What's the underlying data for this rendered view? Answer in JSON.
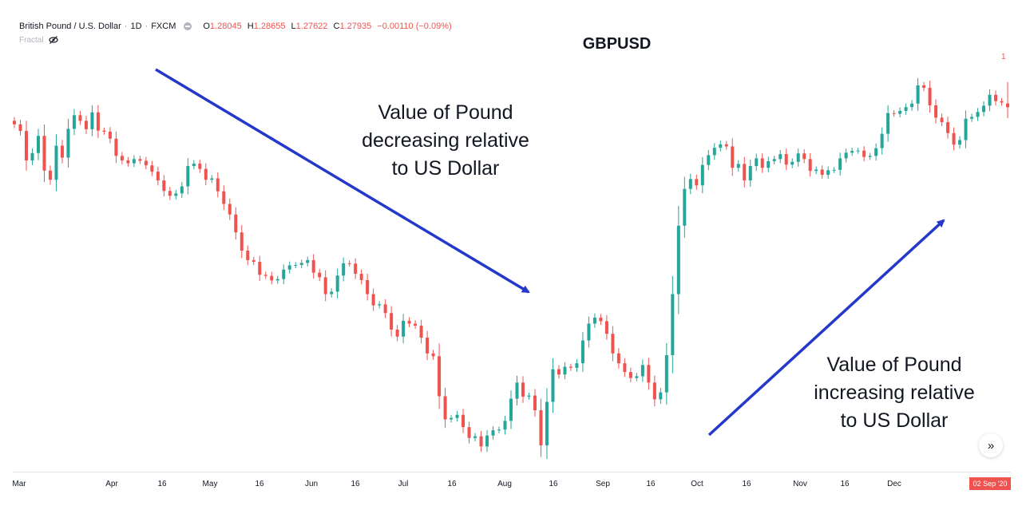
{
  "legend": {
    "symbol": "British Pound / U.S. Dollar",
    "interval": "1D",
    "exchange": "FXCM",
    "ohlc": {
      "o_label": "O",
      "o": "1.28045",
      "h_label": "H",
      "h": "1.28655",
      "l_label": "L",
      "l": "1.27622",
      "c_label": "C",
      "c": "1.27935",
      "change": "−0.00110 (−0.09%)"
    },
    "indicator": "Fractal"
  },
  "corner_label": "1",
  "date_badge": "02 Sep '20",
  "scroll_icon": "double-chevron-right-icon",
  "colors": {
    "up": "#26a69a",
    "down": "#ef5350",
    "arrow": "#2438c9",
    "grid": "#e0e3eb",
    "axis_text": "#131722"
  },
  "annotations": {
    "down": [
      "Value of Pound",
      "decreasing relative",
      "to US Dollar"
    ],
    "up": [
      "Value of Pound",
      "increasing relative",
      "to US Dollar"
    ]
  },
  "chart_data": {
    "type": "candlestick",
    "title": "GBPUSD",
    "x_tick_labels": [
      "Mar",
      "Apr",
      "16",
      "May",
      "16",
      "Jun",
      "16",
      "Jul",
      "16",
      "Aug",
      "16",
      "Sep",
      "16",
      "Oct",
      "16",
      "Nov",
      "16",
      "Dec"
    ],
    "series": [
      {
        "close_path": [
          1.2745,
          1.2726,
          1.2642,
          1.2663,
          1.2712,
          1.2613,
          1.2587,
          1.2684,
          1.265,
          1.2732,
          1.2771,
          1.2755,
          1.2731,
          1.2779,
          1.2727,
          1.2724,
          1.2704,
          1.2655,
          1.2642,
          1.2634,
          1.2646,
          1.2641,
          1.2628,
          1.261,
          1.2585,
          1.2555,
          1.2541,
          1.2548,
          1.2568,
          1.2626,
          1.2633,
          1.2618,
          1.2587,
          1.2591,
          1.2554,
          1.2518,
          1.2488,
          1.2437,
          1.2385,
          1.2358,
          1.2353,
          1.2316,
          1.2313,
          1.23,
          1.2304,
          1.2331,
          1.2343,
          1.2344,
          1.235,
          1.2358,
          1.2322,
          1.2309,
          1.2261,
          1.2268,
          1.2314,
          1.2349,
          1.2348,
          1.2319,
          1.2301,
          1.2261,
          1.2229,
          1.2232,
          1.2207,
          1.216,
          1.214,
          1.2185,
          1.2177,
          1.2171,
          1.2137,
          1.2092,
          1.2084,
          1.197,
          1.1904,
          1.1908,
          1.1917,
          1.1882,
          1.1851,
          1.1856,
          1.1827,
          1.1858,
          1.1873,
          1.1875,
          1.19,
          1.1963,
          1.2009,
          1.1969,
          1.1972,
          1.193,
          1.183,
          1.1954,
          1.2047,
          1.2032,
          1.2054,
          1.2051,
          1.2064,
          1.2129,
          1.2177,
          1.2194,
          1.2184,
          1.2148,
          1.2092,
          1.2064,
          1.2039,
          1.2022,
          1.2027,
          1.2059,
          1.2009,
          1.1961,
          1.1981,
          1.2087,
          1.2261,
          1.2456,
          1.2561,
          1.2589,
          1.2571,
          1.2629,
          1.2657,
          1.2678,
          1.2688,
          1.2682,
          1.2621,
          1.2632,
          1.2585,
          1.2626,
          1.2648,
          1.2621,
          1.264,
          1.2646,
          1.266,
          1.263,
          1.2638,
          1.2662,
          1.2646,
          1.2612,
          1.2616,
          1.2601,
          1.2614,
          1.2615,
          1.2648,
          1.2664,
          1.2669,
          1.267,
          1.2652,
          1.2655,
          1.2677,
          1.2718,
          1.2777,
          1.2775,
          1.2783,
          1.2794,
          1.2804,
          1.2856,
          1.2849,
          1.2799,
          1.2764,
          1.2751,
          1.272,
          1.2687,
          1.27,
          1.2761,
          1.2766,
          1.278,
          1.2798,
          1.2829,
          1.2811,
          1.2807,
          1.2794
        ],
        "last_bar": {
          "open": 1.28045,
          "high": 1.28655,
          "low": 1.27622,
          "close": 1.27935
        },
        "y_range": [
          1.178,
          1.294
        ]
      }
    ]
  }
}
